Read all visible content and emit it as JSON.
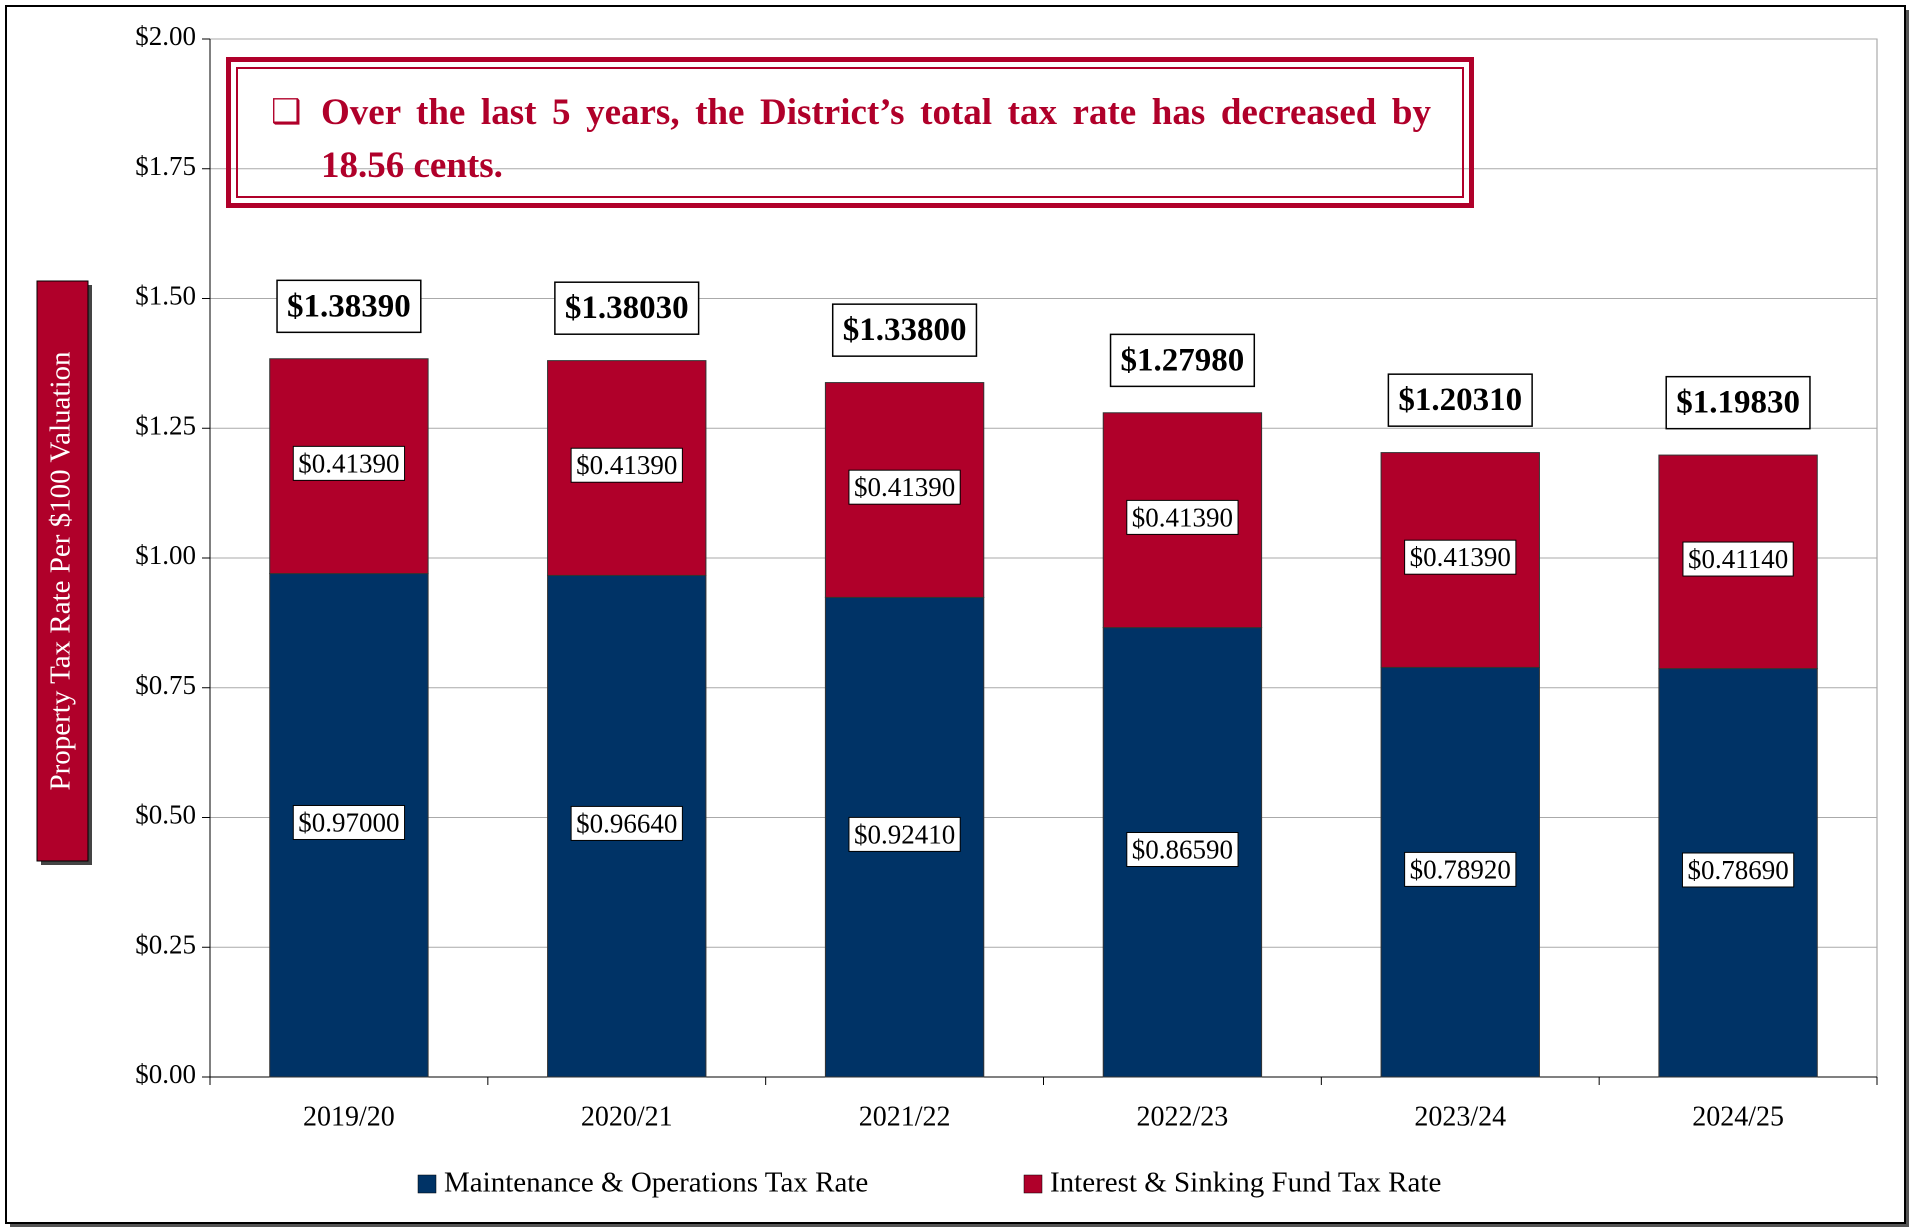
{
  "chart_data": {
    "type": "stacked-bar",
    "annotation": "Over the last 5 years, the District’s total tax rate has decreased by 18.56 cents.",
    "y_label": "Property Tax Rate Per $100 Valuation",
    "categories": [
      "2019/20",
      "2020/21",
      "2021/22",
      "2022/23",
      "2023/24",
      "2024/25"
    ],
    "series": [
      {
        "name": "Maintenance & Operations Tax Rate",
        "color": "#003366",
        "values": [
          0.97,
          0.9664,
          0.9241,
          0.8659,
          0.7892,
          0.7869
        ],
        "value_labels": [
          "$0.97000",
          "$0.96640",
          "$0.92410",
          "$0.86590",
          "$0.78920",
          "$0.78690"
        ]
      },
      {
        "name": "Interest & Sinking Fund Tax Rate",
        "color": "#b0002a",
        "values": [
          0.4139,
          0.4139,
          0.4139,
          0.4139,
          0.4139,
          0.4114
        ],
        "value_labels": [
          "$0.41390",
          "$0.41390",
          "$0.41390",
          "$0.41390",
          "$0.41390",
          "$0.41140"
        ]
      }
    ],
    "totals": {
      "values": [
        1.3839,
        1.3803,
        1.338,
        1.2798,
        1.2031,
        1.1983
      ],
      "value_labels": [
        "$1.38390",
        "$1.38030",
        "$1.33800",
        "$1.27980",
        "$1.20310",
        "$1.19830"
      ]
    },
    "ylim": [
      0,
      2
    ],
    "yticks": [
      {
        "value": 0,
        "label": "$0.00"
      },
      {
        "value": 0.25,
        "label": "$0.25"
      },
      {
        "value": 0.5,
        "label": "$0.50"
      },
      {
        "value": 0.75,
        "label": "$0.75"
      },
      {
        "value": 1,
        "label": "$1.00"
      },
      {
        "value": 1.25,
        "label": "$1.25"
      },
      {
        "value": 1.5,
        "label": "$1.50"
      },
      {
        "value": 1.75,
        "label": "$1.75"
      },
      {
        "value": 2,
        "label": "$2.00"
      }
    ],
    "grid": true,
    "legend": "bottom"
  }
}
